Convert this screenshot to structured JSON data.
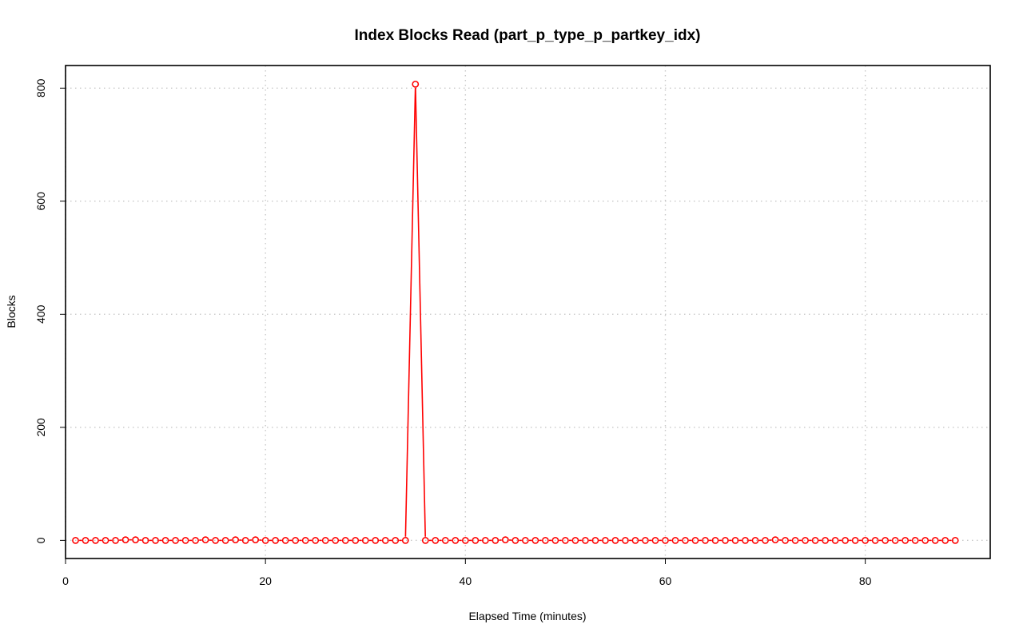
{
  "chart_data": {
    "type": "line",
    "title": "Index Blocks Read (part_p_type_p_partkey_idx)",
    "xlabel": "Elapsed Time (minutes)",
    "ylabel": "Blocks",
    "xlim": [
      0,
      92.5
    ],
    "ylim": [
      -32,
      840
    ],
    "xticks": [
      0,
      20,
      40,
      60,
      80
    ],
    "yticks": [
      0,
      200,
      400,
      600,
      800
    ],
    "grid": true,
    "series_color": "#ff0000",
    "series": [
      {
        "x": [
          1,
          2,
          3,
          4,
          5,
          6,
          7,
          8,
          9,
          10,
          11,
          12,
          13,
          14,
          15,
          16,
          17,
          18,
          19,
          20,
          21,
          22,
          23,
          24,
          25,
          26,
          27,
          28,
          29,
          30,
          31,
          32,
          33,
          34,
          35,
          36,
          37,
          38,
          39,
          40,
          41,
          42,
          43,
          44,
          45,
          46,
          47,
          48,
          49,
          50,
          51,
          52,
          53,
          54,
          55,
          56,
          57,
          58,
          59,
          60,
          61,
          62,
          63,
          64,
          65,
          66,
          67,
          68,
          69,
          70,
          71,
          72,
          73,
          74,
          75,
          76,
          77,
          78,
          79,
          80,
          81,
          82,
          83,
          84,
          85,
          86,
          87,
          88,
          89
        ],
        "values": [
          0,
          0,
          0,
          0,
          0,
          1,
          1,
          0,
          0,
          0,
          0,
          0,
          0,
          1,
          0,
          0,
          1,
          0,
          1,
          0,
          0,
          0,
          0,
          0,
          0,
          0,
          0,
          0,
          0,
          0,
          0,
          0,
          0,
          0,
          807,
          0,
          0,
          0,
          0,
          0,
          0,
          0,
          0,
          1,
          0,
          0,
          0,
          0,
          0,
          0,
          0,
          0,
          0,
          0,
          0,
          0,
          0,
          0,
          0,
          0,
          0,
          0,
          0,
          0,
          0,
          0,
          0,
          0,
          0,
          0,
          1,
          0,
          0,
          0,
          0,
          0,
          0,
          0,
          0,
          0,
          0,
          0,
          0,
          0,
          0,
          0,
          0,
          0,
          0
        ]
      }
    ]
  }
}
